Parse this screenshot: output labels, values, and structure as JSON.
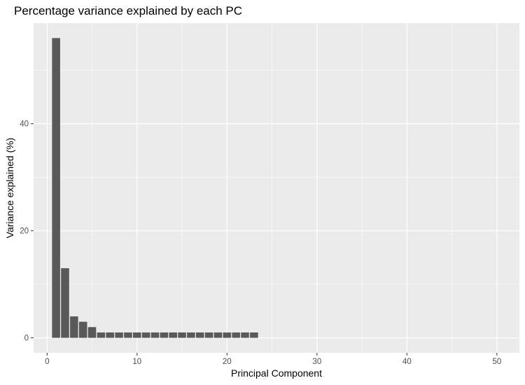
{
  "chart_data": {
    "type": "bar",
    "title": "Percentage variance explained by each PC",
    "xlabel": "Principal Component",
    "ylabel": "Variance explained (%)",
    "x": [
      1,
      2,
      3,
      4,
      5,
      6,
      7,
      8,
      9,
      10,
      11,
      12,
      13,
      14,
      15,
      16,
      17,
      18,
      19,
      20,
      21,
      22,
      23
    ],
    "values": [
      56,
      13,
      4,
      3,
      2,
      1,
      1,
      1,
      1,
      1,
      1,
      1,
      1,
      1,
      1,
      1,
      1,
      1,
      1,
      1,
      1,
      1,
      1
    ],
    "xlim": [
      -1.5,
      52.5
    ],
    "ylim": [
      -2.8,
      58.8
    ],
    "xticks": [
      0,
      10,
      20,
      30,
      40,
      50
    ],
    "yticks": [
      0,
      20,
      40
    ],
    "grid": true,
    "colors": {
      "bar": "#595959",
      "panel": "#ebebeb",
      "grid_major": "#ffffff",
      "tick_text": "#4d4d4d"
    }
  }
}
